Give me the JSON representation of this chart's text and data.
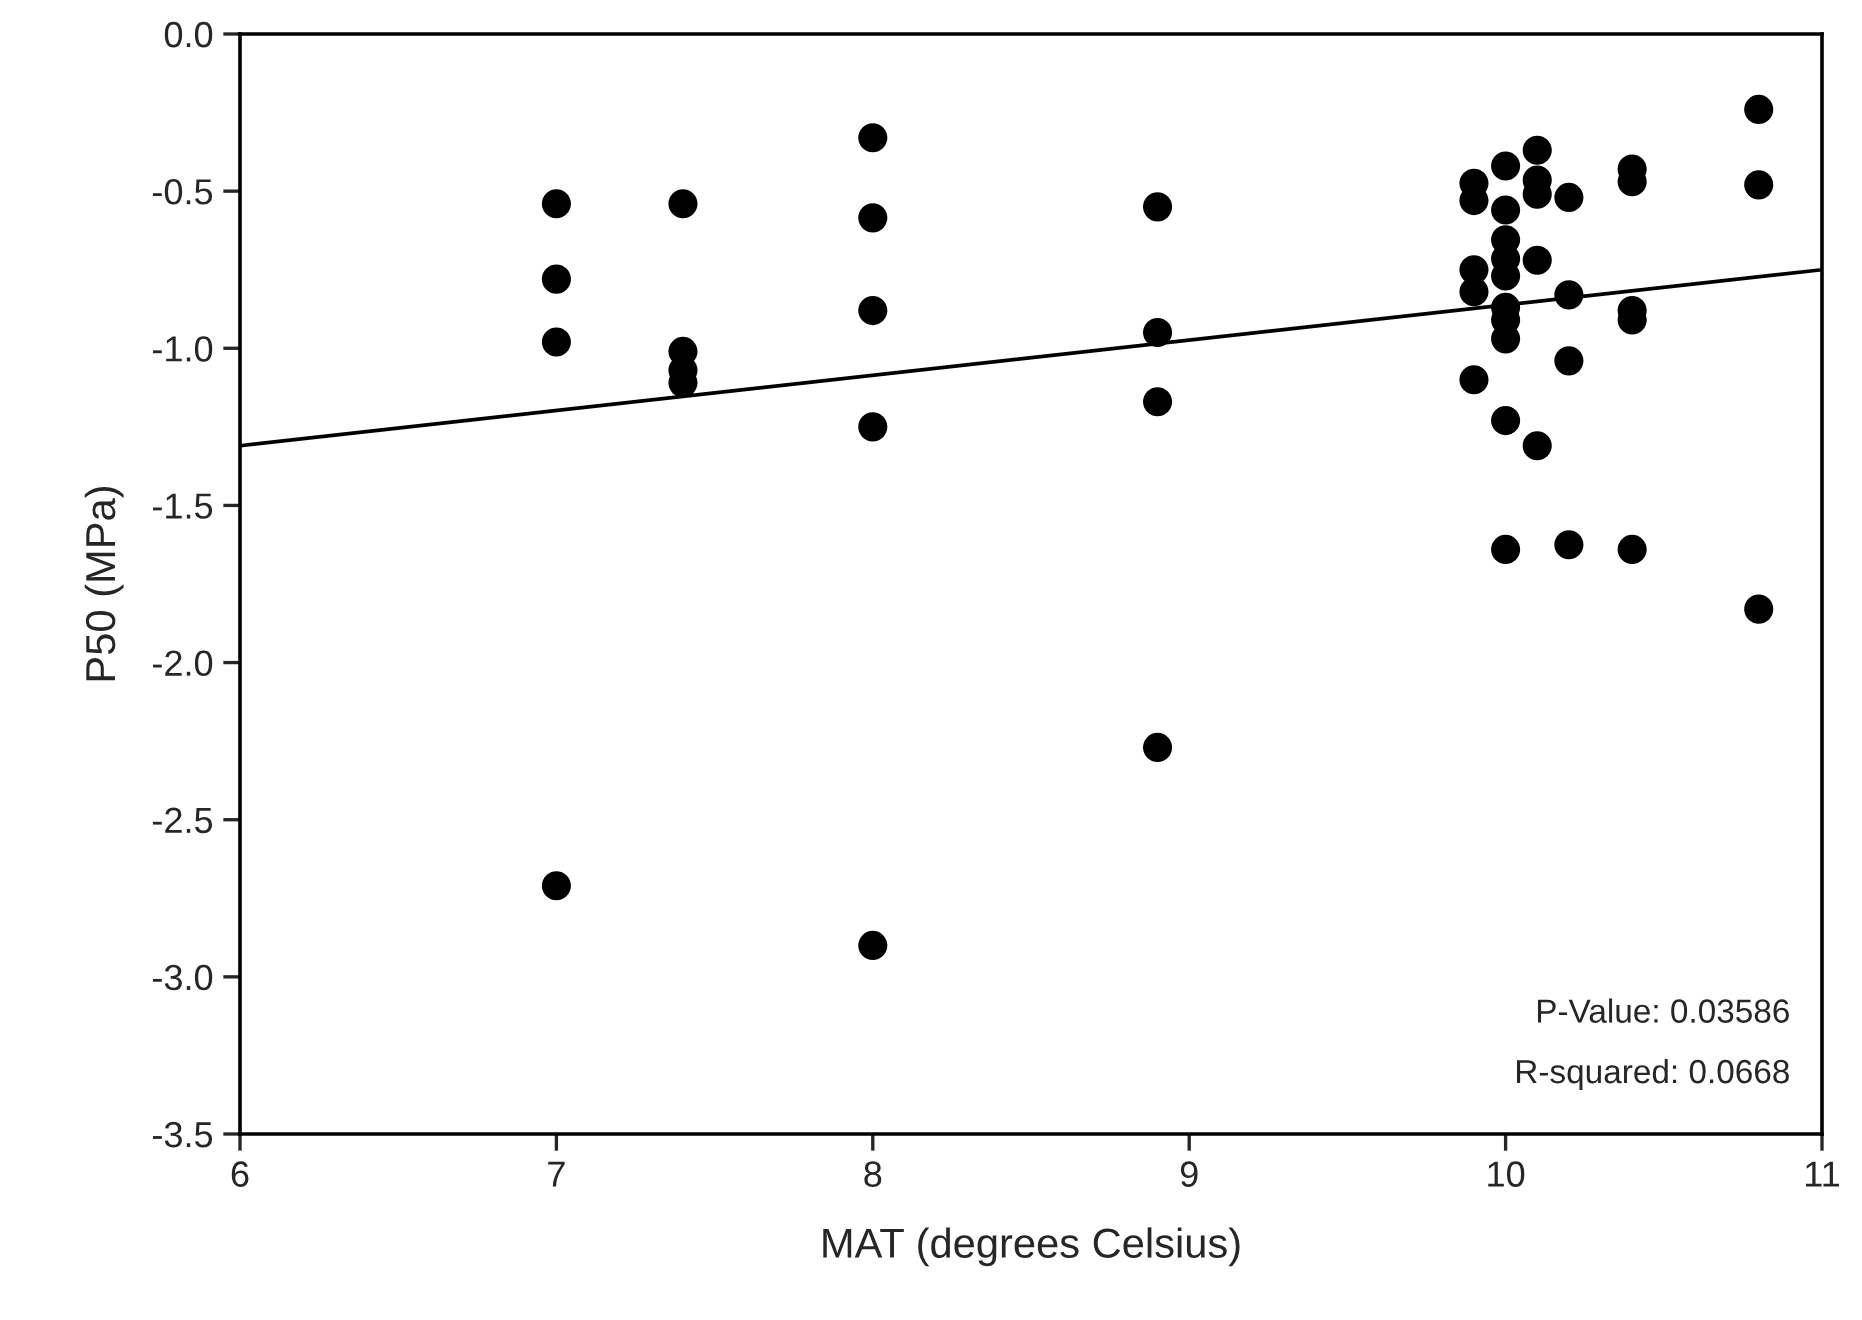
{
  "chart_data": {
    "type": "scatter",
    "xlabel": "MAT (degrees Celsius)",
    "ylabel": "P50 (MPa)",
    "xlim": [
      6,
      11
    ],
    "xticks": [
      6,
      7,
      8,
      9,
      10,
      11
    ],
    "ylim": [
      -3.5,
      0
    ],
    "yticks": [
      {
        "value": -3.5,
        "label": "-3.5"
      },
      {
        "value": -3.0,
        "label": "-3.0"
      },
      {
        "value": -2.5,
        "label": "-2.5"
      },
      {
        "value": -2.0,
        "label": "-2.0"
      },
      {
        "value": -1.5,
        "label": "-1.5"
      },
      {
        "value": -1.0,
        "label": "-1.0"
      },
      {
        "value": -0.5,
        "label": "-0.5"
      },
      {
        "value": 0,
        "label": "0.0"
      }
    ],
    "grid": false,
    "legend": false,
    "series": [
      {
        "color": "#000000",
        "marker": "circle",
        "x": [
          7,
          7,
          7,
          7,
          7.4,
          7.4,
          7.4,
          7.4,
          8,
          8,
          8,
          8,
          8,
          8.9,
          8.9,
          8.9,
          8.9,
          9.9,
          9.9,
          9.9,
          9.9,
          9.9,
          10,
          10,
          10,
          10,
          10,
          10,
          10,
          10,
          10,
          10,
          10.1,
          10.1,
          10.1,
          10.1,
          10.1,
          10.2,
          10.2,
          10.2,
          10.2,
          10.4,
          10.4,
          10.4,
          10.4,
          10.4,
          10.8,
          10.8,
          10.8
        ],
        "values": [
          -0.54,
          -0.78,
          -0.98,
          -2.71,
          -0.54,
          -1.01,
          -1.07,
          -1.11,
          -0.33,
          -0.585,
          -0.88,
          -1.25,
          -2.9,
          -0.55,
          -0.95,
          -1.17,
          -2.27,
          -0.475,
          -0.53,
          -0.75,
          -0.82,
          -1.1,
          -0.42,
          -0.56,
          -0.655,
          -0.715,
          -0.77,
          -0.87,
          -0.91,
          -0.97,
          -1.23,
          -1.64,
          -0.37,
          -0.465,
          -0.51,
          -0.72,
          -1.31,
          -0.52,
          -0.83,
          -1.04,
          -1.625,
          -0.43,
          -0.47,
          -0.88,
          -0.91,
          -1.64,
          -0.24,
          -0.48,
          -1.83
        ]
      },
      {
        "type": "line",
        "color": "#000000",
        "x": [
          6,
          11
        ],
        "values": [
          -1.31,
          -0.75
        ],
        "line_style": "solid",
        "marker": "none"
      }
    ],
    "annotations": [
      "P-Value: 0.03586",
      "R-squared: 0.0668"
    ]
  }
}
